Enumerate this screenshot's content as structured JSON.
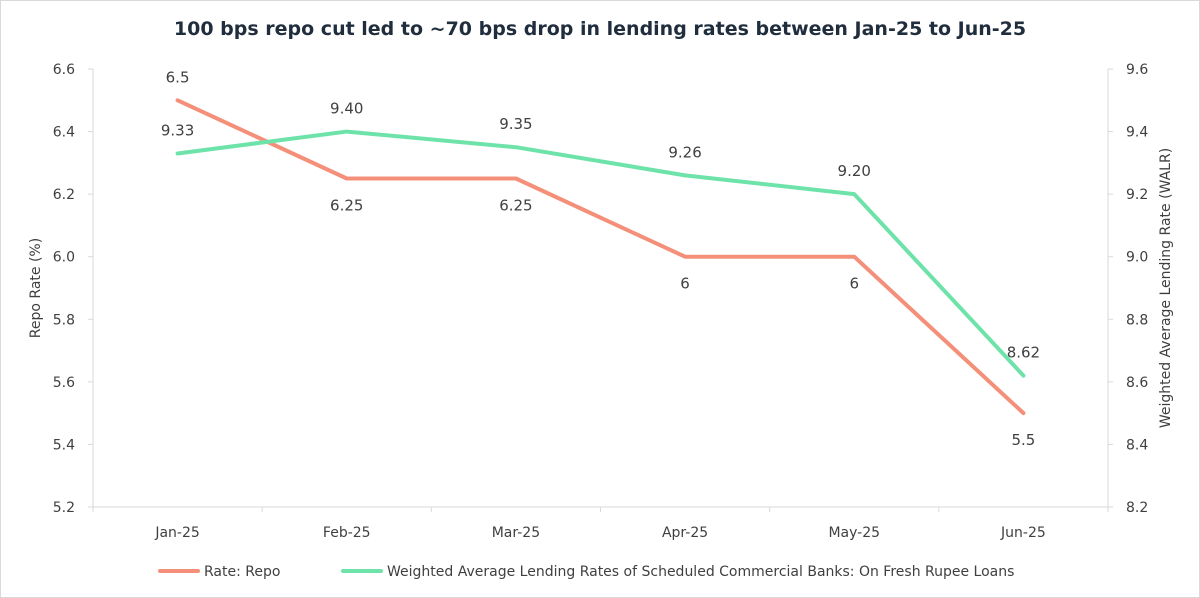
{
  "chart_data": {
    "type": "line",
    "title": "100 bps repo cut led to ~70 bps drop in lending rates between Jan-25 to Jun-25",
    "categories": [
      "Jan-25",
      "Feb-25",
      "Mar-25",
      "Apr-25",
      "May-25",
      "Jun-25"
    ],
    "ylabel_left": "Repo Rate (%)",
    "ylabel_right": "Weighted Average Lending Rate (WALR)",
    "ylim_left": [
      5.2,
      6.6
    ],
    "ylim_right": [
      8.2,
      9.6
    ],
    "yticks_left": [
      "5.2",
      "5.4",
      "5.6",
      "5.8",
      "6.0",
      "6.2",
      "6.4",
      "6.6"
    ],
    "yticks_right": [
      "8.2",
      "8.4",
      "8.6",
      "8.8",
      "9.0",
      "9.2",
      "9.4",
      "9.6"
    ],
    "grid": false,
    "legend_position": "bottom",
    "series": [
      {
        "name": "Rate: Repo",
        "axis": "left",
        "color": "#f4907a",
        "values": [
          6.5,
          6.25,
          6.25,
          6,
          6,
          5.5
        ],
        "labels": [
          "6.5",
          "6.25",
          "6.25",
          "6",
          "6",
          "5.5"
        ],
        "label_side": [
          "above",
          "below",
          "below",
          "below",
          "below",
          "below"
        ]
      },
      {
        "name": "Weighted Average Lending Rates of Scheduled Commercial Banks: On Fresh Rupee Loans",
        "axis": "right",
        "color": "#6ee3a9",
        "values": [
          9.33,
          9.4,
          9.35,
          9.26,
          9.2,
          8.62
        ],
        "labels": [
          "9.33",
          "9.40",
          "9.35",
          "9.26",
          "9.20",
          "8.62"
        ],
        "label_side": [
          "above",
          "above",
          "above",
          "above",
          "above",
          "above"
        ]
      }
    ]
  }
}
